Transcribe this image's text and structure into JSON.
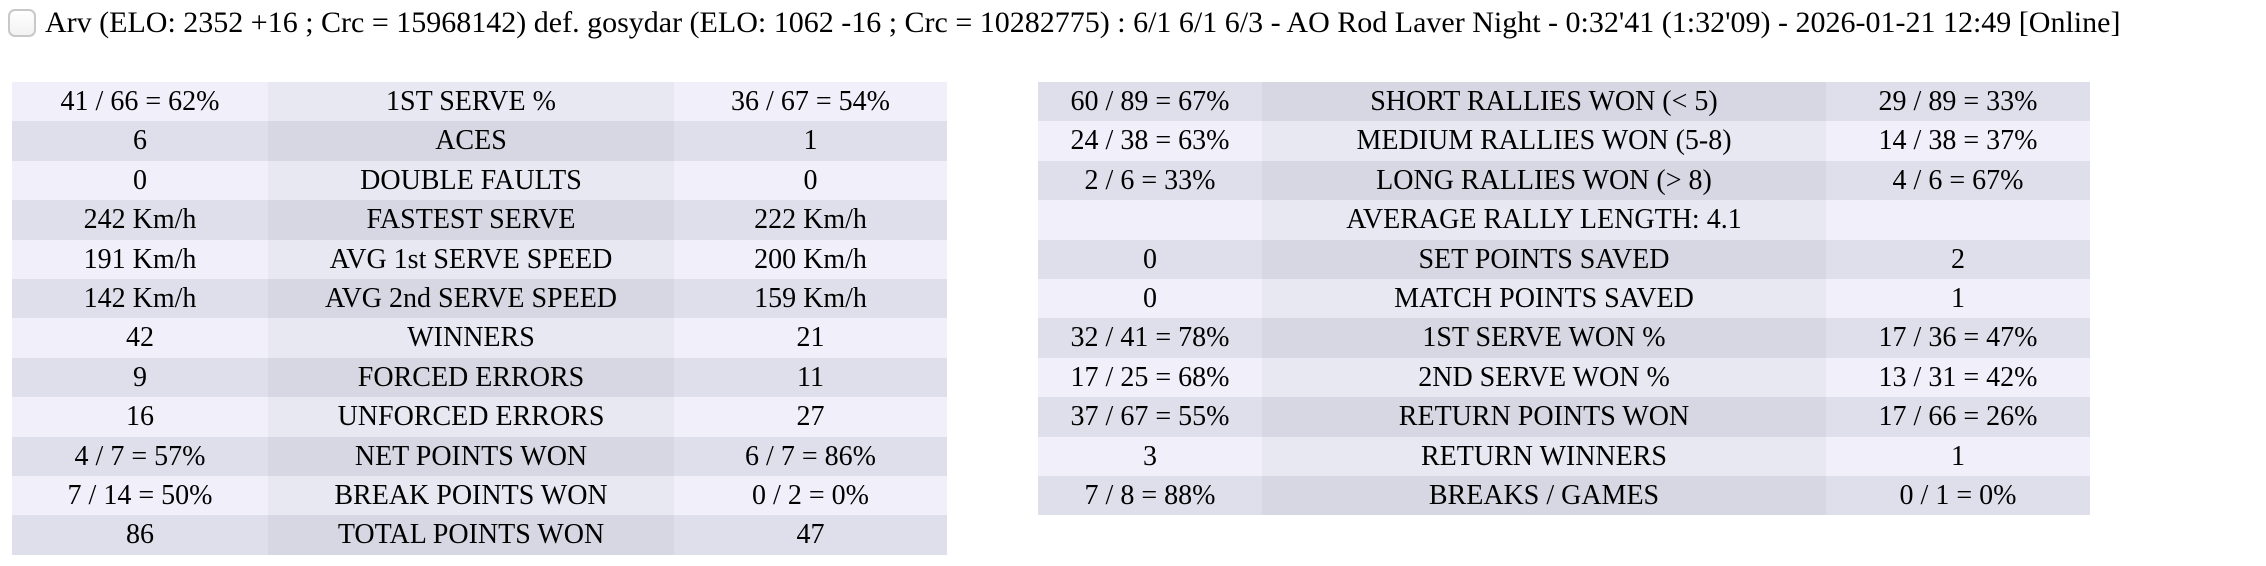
{
  "title": {
    "checkbox_checked": false,
    "text": "Arv (ELO: 2352 +16 ; Crc = 15968142) def. gosydar (ELO: 1062 -16 ; Crc = 10282775) : 6/1 6/1 6/3 - AO Rod Laver Night - 0:32'41 (1:32'09) - 2026-01-21 12:49 [Online]"
  },
  "stats_left": {
    "start_shade": "light",
    "rows": [
      {
        "p1": "41 / 66 = 62%",
        "label": "1ST SERVE %",
        "p2": "36 / 67 = 54%"
      },
      {
        "p1": "6",
        "label": "ACES",
        "p2": "1"
      },
      {
        "p1": "0",
        "label": "DOUBLE FAULTS",
        "p2": "0"
      },
      {
        "p1": "242 Km/h",
        "label": "FASTEST SERVE",
        "p2": "222 Km/h"
      },
      {
        "p1": "191 Km/h",
        "label": "AVG 1st SERVE SPEED",
        "p2": "200 Km/h"
      },
      {
        "p1": "142 Km/h",
        "label": "AVG 2nd SERVE SPEED",
        "p2": "159 Km/h"
      },
      {
        "p1": "42",
        "label": "WINNERS",
        "p2": "21"
      },
      {
        "p1": "9",
        "label": "FORCED ERRORS",
        "p2": "11"
      },
      {
        "p1": "16",
        "label": "UNFORCED ERRORS",
        "p2": "27"
      },
      {
        "p1": "4 / 7 = 57%",
        "label": "NET POINTS WON",
        "p2": "6 / 7 = 86%"
      },
      {
        "p1": "7 / 14 = 50%",
        "label": "BREAK POINTS WON",
        "p2": "0 / 2 = 0%"
      },
      {
        "p1": "86",
        "label": "TOTAL POINTS WON",
        "p2": "47"
      }
    ]
  },
  "stats_right": {
    "start_shade": "dark",
    "rows": [
      {
        "p1": "60 / 89 = 67%",
        "label": "SHORT RALLIES WON (< 5)",
        "p2": "29 / 89 = 33%"
      },
      {
        "p1": "24 / 38 = 63%",
        "label": "MEDIUM RALLIES WON (5-8)",
        "p2": "14 / 38 = 37%"
      },
      {
        "p1": "2 / 6 = 33%",
        "label": "LONG RALLIES WON (> 8)",
        "p2": "4 / 6 = 67%"
      },
      {
        "p1": "",
        "label": "AVERAGE RALLY LENGTH: 4.1",
        "p2": ""
      },
      {
        "p1": "0",
        "label": "SET POINTS SAVED",
        "p2": "2"
      },
      {
        "p1": "0",
        "label": "MATCH POINTS SAVED",
        "p2": "1"
      },
      {
        "p1": "32 / 41 = 78%",
        "label": "1ST SERVE WON %",
        "p2": "17 / 36 = 47%"
      },
      {
        "p1": "17 / 25 = 68%",
        "label": "2ND SERVE WON %",
        "p2": "13 / 31 = 42%"
      },
      {
        "p1": "37 / 67 = 55%",
        "label": "RETURN POINTS WON",
        "p2": "17 / 66 = 26%"
      },
      {
        "p1": "3",
        "label": "RETURN WINNERS",
        "p2": "1"
      },
      {
        "p1": "7 / 8 = 88%",
        "label": "BREAKS / GAMES",
        "p2": "0 / 1 = 0%"
      }
    ]
  },
  "colors": {
    "row_light_value": "#f0effa",
    "row_light_label": "#e8e8f3",
    "row_dark_value": "#dfdfeb",
    "row_dark_label": "#d7d7e3",
    "text": "#000000",
    "background": "#ffffff"
  }
}
